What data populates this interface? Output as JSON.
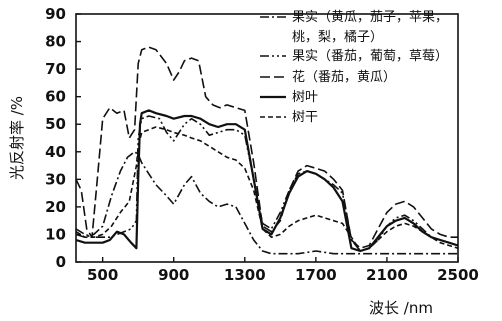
{
  "chart_data": {
    "type": "line",
    "title": "",
    "xlabel": "波长 /nm",
    "ylabel": "光反射率 /%",
    "xlim": [
      350,
      2500
    ],
    "ylim": [
      0,
      90
    ],
    "xticks": [
      500,
      900,
      1300,
      1700,
      2100,
      2500
    ],
    "yticks": [
      0,
      10,
      20,
      30,
      40,
      50,
      60,
      70,
      80,
      90
    ],
    "grid": false,
    "legend": {
      "placement": "top-right",
      "entries": [
        {
          "lines": [
            "果实（黄瓜，茄子，苹果，",
            "桃，梨，橘子）"
          ]
        },
        {
          "lines": [
            "果实（番茄，葡萄，草莓）"
          ]
        },
        {
          "lines": [
            "花（番茄，黄瓜）"
          ]
        },
        {
          "lines": [
            "树叶"
          ]
        },
        {
          "lines": [
            "树干"
          ]
        }
      ]
    },
    "series": [
      {
        "name": "果实（黄瓜，茄子，苹果，桃，梨，橘子）",
        "style": "dashdot",
        "x": [
          350,
          400,
          450,
          500,
          550,
          600,
          640,
          680,
          700,
          720,
          760,
          800,
          860,
          900,
          960,
          1000,
          1050,
          1100,
          1150,
          1200,
          1250,
          1300,
          1350,
          1400,
          1450,
          1500,
          1600,
          1700,
          1800,
          1900,
          2000,
          2100,
          2200,
          2300,
          2400,
          2500
        ],
        "y": [
          10,
          9,
          10,
          13,
          24,
          33,
          38,
          40,
          39,
          36,
          32,
          28,
          24,
          21,
          28,
          31,
          25,
          22,
          20,
          21,
          20,
          14,
          8,
          4,
          3,
          3,
          3,
          4,
          3,
          3,
          3,
          3,
          3,
          3,
          3,
          3
        ]
      },
      {
        "name": "果实（番茄，葡萄，草莓）",
        "style": "dashdotdot",
        "x": [
          350,
          400,
          450,
          500,
          540,
          580,
          620,
          660,
          690,
          700,
          720,
          760,
          820,
          860,
          900,
          960,
          1000,
          1050,
          1100,
          1150,
          1200,
          1250,
          1300,
          1350,
          1400,
          1450,
          1500,
          1550,
          1600,
          1650,
          1700,
          1750,
          1800,
          1850,
          1900,
          1950,
          2000,
          2050,
          2100,
          2150,
          2200,
          2250,
          2300,
          2350,
          2400,
          2450,
          2500
        ],
        "y": [
          12,
          10,
          9,
          9,
          9,
          10,
          11,
          12,
          15,
          45,
          52,
          53,
          52,
          47,
          44,
          50,
          52,
          50,
          46,
          47,
          48,
          48,
          46,
          30,
          14,
          12,
          18,
          26,
          32,
          33,
          32,
          30,
          28,
          25,
          8,
          4,
          5,
          8,
          13,
          16,
          17,
          15,
          12,
          9,
          8,
          7,
          6
        ]
      },
      {
        "name": "花（番茄，黄瓜）",
        "style": "dashed",
        "x": [
          350,
          380,
          410,
          440,
          470,
          500,
          540,
          580,
          620,
          650,
          680,
          700,
          720,
          760,
          800,
          860,
          900,
          930,
          960,
          1000,
          1040,
          1080,
          1120,
          1160,
          1200,
          1250,
          1300,
          1350,
          1400,
          1450,
          1500,
          1550,
          1600,
          1650,
          1700,
          1750,
          1800,
          1850,
          1900,
          1950,
          2000,
          2050,
          2100,
          2150,
          2200,
          2250,
          2300,
          2350,
          2400,
          2450,
          2500
        ],
        "y": [
          30,
          26,
          12,
          9,
          30,
          52,
          56,
          54,
          55,
          45,
          48,
          72,
          77,
          78,
          77,
          72,
          66,
          69,
          73,
          74,
          73,
          60,
          57,
          56,
          57,
          56,
          55,
          36,
          13,
          11,
          15,
          26,
          33,
          35,
          34,
          33,
          30,
          26,
          8,
          5,
          6,
          12,
          18,
          21,
          22,
          20,
          16,
          12,
          10,
          9,
          9
        ]
      },
      {
        "name": "树叶",
        "style": "solid",
        "x": [
          350,
          400,
          450,
          500,
          540,
          580,
          620,
          660,
          690,
          700,
          710,
          720,
          760,
          800,
          860,
          900,
          960,
          1000,
          1050,
          1100,
          1150,
          1200,
          1250,
          1300,
          1350,
          1400,
          1450,
          1500,
          1550,
          1600,
          1650,
          1700,
          1750,
          1800,
          1850,
          1900,
          1950,
          2000,
          2050,
          2100,
          2150,
          2200,
          2250,
          2300,
          2350,
          2400,
          2450,
          2500
        ],
        "y": [
          8,
          7,
          7,
          7,
          8,
          11,
          10,
          7,
          5,
          30,
          50,
          54,
          55,
          54,
          53,
          52,
          53,
          53,
          52,
          50,
          49,
          50,
          50,
          48,
          30,
          12,
          10,
          16,
          25,
          31,
          33,
          32,
          30,
          27,
          22,
          5,
          4,
          5,
          9,
          13,
          15,
          16,
          14,
          11,
          9,
          8,
          7,
          6
        ]
      },
      {
        "name": "树干",
        "style": "short-dashed",
        "x": [
          350,
          400,
          450,
          500,
          550,
          600,
          650,
          690,
          700,
          720,
          760,
          800,
          860,
          900,
          960,
          1000,
          1050,
          1100,
          1150,
          1200,
          1250,
          1300,
          1350,
          1400,
          1450,
          1500,
          1550,
          1600,
          1650,
          1700,
          1750,
          1800,
          1850,
          1900,
          1950,
          2000,
          2050,
          2100,
          2150,
          2200,
          2250,
          2300,
          2350,
          2400,
          2450,
          2500
        ],
        "y": [
          11,
          9,
          9,
          10,
          13,
          18,
          22,
          35,
          42,
          47,
          48,
          49,
          48,
          47,
          46,
          45,
          44,
          42,
          40,
          38,
          37,
          34,
          26,
          12,
          9,
          10,
          13,
          15,
          16,
          17,
          16,
          15,
          14,
          9,
          4,
          5,
          8,
          11,
          13,
          14,
          13,
          11,
          9,
          7,
          6,
          5
        ]
      }
    ]
  }
}
